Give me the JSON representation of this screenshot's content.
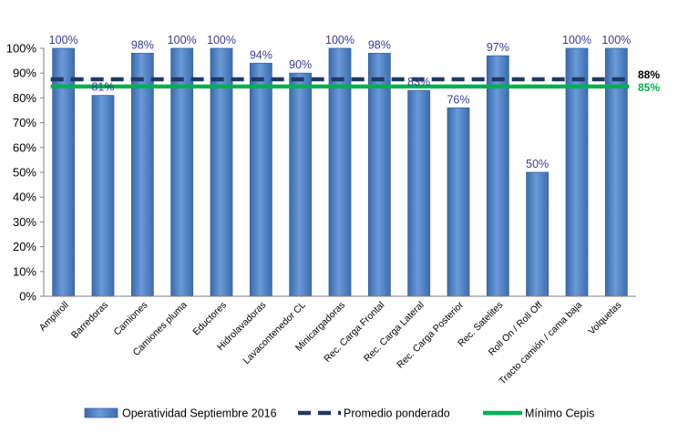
{
  "chart_data": {
    "type": "bar",
    "categories": [
      "Ampliroll",
      "Barredoras",
      "Camiones",
      "Camiones pluma",
      "Eductores",
      "Hidrolavadoras",
      "Lavacontenedor CL",
      "Minicargadoras",
      "Rec. Carga Frontal",
      "Rec. Carga Lateral",
      "Rec. Carga Posterior",
      "Rec. Satelites",
      "Roll On / Roll Off",
      "Tracto camión / cama baja",
      "Volquetas"
    ],
    "series": [
      {
        "name": "Operatividad Septiembre 2016",
        "values": [
          100,
          81,
          98,
          100,
          100,
          94,
          90,
          100,
          98,
          83,
          76,
          97,
          50,
          100,
          100
        ],
        "labels": [
          "100%",
          "81%",
          "98%",
          "100%",
          "100%",
          "94%",
          "90%",
          "100%",
          "98%",
          "83%",
          "76%",
          "97%",
          "50%",
          "100%",
          "100%"
        ],
        "color": "#4f81c7"
      }
    ],
    "reference_lines": [
      {
        "name": "Promedio ponderado",
        "value": 87.5,
        "label": "88%",
        "color": "#1f3864",
        "style": "dashed"
      },
      {
        "name": "Mínimo Cepis",
        "value": 84.6,
        "label": "85%",
        "color": "#00b050",
        "style": "solid"
      }
    ],
    "ylim": [
      0,
      100
    ],
    "yticks": [
      "0%",
      "10%",
      "20%",
      "30%",
      "40%",
      "50%",
      "60%",
      "70%",
      "80%",
      "90%",
      "100%"
    ],
    "title": "",
    "xlabel": "",
    "ylabel": "",
    "grid": false,
    "legend_position": "bottom"
  }
}
